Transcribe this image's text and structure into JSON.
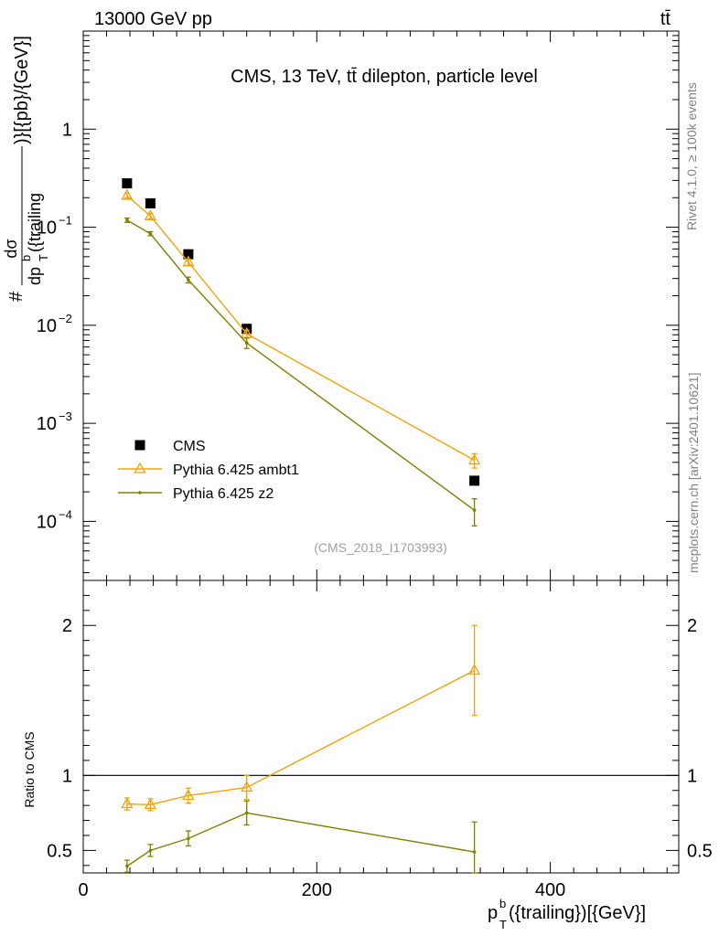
{
  "header": {
    "energy_label": "13000 GeV pp",
    "process_label": "tt̄"
  },
  "side_labels": {
    "rivet": "Rivet 4.1.0, ≥ 100k events",
    "mcplots": "mcplots.cern.ch [arXiv:2401.10621]"
  },
  "chart_data": [
    {
      "type": "scatter",
      "title": "CMS, 13 TeV, tt̄ dilepton, particle level",
      "analysis_id": "(CMS_2018_I1703993)",
      "ylabel": "#dσ/dp_T^b({trailing})}[{pb}/{GeV}]",
      "ylabel_top": "dσ",
      "ylabel_bottom": "dp",
      "ylabel_sup": "b",
      "ylabel_sub": "T",
      "ylabel_paren": "({trailing",
      "ylabel_tail": ")}[{pb}/{GeV}]",
      "ylabel_hash": "#",
      "yscale": "log",
      "ylim": [
        2.5e-05,
        10
      ],
      "xlim": [
        0,
        510
      ],
      "y_ticks": [
        {
          "value": 1,
          "label": "1"
        },
        {
          "value": 0.1,
          "label": "10",
          "exp": "−1"
        },
        {
          "value": 0.01,
          "label": "10",
          "exp": "−2"
        },
        {
          "value": 0.001,
          "label": "10",
          "exp": "−3"
        },
        {
          "value": 0.0001,
          "label": "10",
          "exp": "−4"
        }
      ],
      "legend_position": "bottom-left",
      "series": [
        {
          "name": "CMS",
          "color": "#000000",
          "marker": "square",
          "x": [
            37.5,
            57.5,
            90,
            140,
            335
          ],
          "y": [
            0.28,
            0.175,
            0.053,
            0.0092,
            0.00026
          ],
          "err": [
            0,
            0,
            0,
            0,
            0
          ]
        },
        {
          "name": "Pythia 6.425 ambt1",
          "color": "#f0a30a",
          "marker": "triangle",
          "x": [
            37.5,
            57.5,
            90,
            140,
            335
          ],
          "y": [
            0.21,
            0.13,
            0.044,
            0.0082,
            0.00042
          ],
          "err": [
            0.012,
            0.008,
            0.003,
            0.0007,
            7e-05
          ]
        },
        {
          "name": "Pythia 6.425 z2",
          "color": "#808000",
          "marker": "dot",
          "x": [
            37.5,
            57.5,
            90,
            140,
            335
          ],
          "y": [
            0.118,
            0.086,
            0.029,
            0.0066,
            0.00013
          ],
          "err": [
            0.006,
            0.004,
            0.002,
            0.0008,
            4e-05
          ]
        }
      ]
    },
    {
      "type": "line",
      "ylabel": "Ratio to CMS",
      "xlabel": "p_T^b({trailing})[{GeV}]",
      "xlabel_main": "p",
      "xlabel_sup": "b",
      "xlabel_sub": "T",
      "xlabel_tail": "({trailing})[{GeV}]",
      "ylim": [
        0.35,
        2.3
      ],
      "xlim": [
        0,
        510
      ],
      "x_ticks": [
        {
          "value": 0,
          "label": "0"
        },
        {
          "value": 200,
          "label": "200"
        },
        {
          "value": 400,
          "label": "400"
        }
      ],
      "y_ticks": [
        {
          "value": 0.5,
          "label": "0.5"
        },
        {
          "value": 1,
          "label": "1"
        },
        {
          "value": 2,
          "label": "2"
        }
      ],
      "reference_line": 1,
      "series": [
        {
          "name": "Pythia 6.425 ambt1",
          "color": "#f0a30a",
          "marker": "triangle",
          "x": [
            37.5,
            57.5,
            90,
            140,
            335
          ],
          "y": [
            0.81,
            0.805,
            0.865,
            0.92,
            1.7
          ],
          "err": [
            0.04,
            0.04,
            0.05,
            0.08,
            0.3
          ]
        },
        {
          "name": "Pythia 6.425 z2",
          "color": "#808000",
          "marker": "dot",
          "x": [
            37.5,
            57.5,
            90,
            140,
            335
          ],
          "y": [
            0.395,
            0.5,
            0.58,
            0.75,
            0.49
          ],
          "err": [
            0.04,
            0.04,
            0.05,
            0.08,
            0.2
          ]
        }
      ]
    }
  ]
}
